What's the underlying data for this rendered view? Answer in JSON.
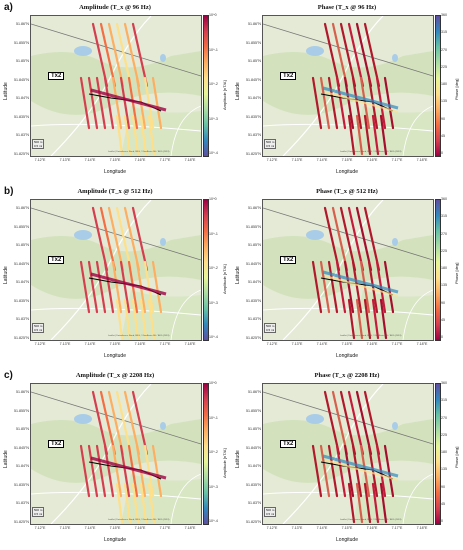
{
  "rows": [
    {
      "letter": "a)",
      "amp_title": "Amplitude (T_x @ 96 Hz)",
      "phase_title": "Phase (T_x @ 96 Hz)"
    },
    {
      "letter": "b)",
      "amp_title": "Amplitude (T_x @ 512 Hz)",
      "phase_title": "Phase (T_x @ 512 Hz)"
    },
    {
      "letter": "c)",
      "amp_title": "Amplitude (T_x @ 2208 Hz)",
      "phase_title": "Phase (T_x @ 2208 Hz)"
    }
  ],
  "axes": {
    "xlabel": "Longitude",
    "ylabel": "Latitude",
    "xticks": [
      "7.12°E",
      "7.13°E",
      "7.14°E",
      "7.15°E",
      "7.16°E",
      "7.17°E",
      "7.18°E"
    ],
    "yticks": [
      "51.86°N",
      "51.855°N",
      "51.85°N",
      "51.845°N",
      "51.84°N",
      "51.835°N",
      "51.83°N",
      "51.825°N"
    ]
  },
  "amp_colorbar": {
    "label": "Amplitude [nT/A]",
    "ticks": [
      "10^0",
      "10^-1",
      "10^-2",
      "10^-3",
      "10^-4"
    ]
  },
  "phase_colorbar": {
    "label": "Phase [deg]",
    "ticks": [
      "360",
      "315",
      "270",
      "225",
      "180",
      "135",
      "90",
      "45",
      "0"
    ]
  },
  "tx_label": "Tx2",
  "scale_labels": [
    "500 m",
    "0.5 mi"
  ],
  "attribution": "Leaflet | Datenlizenz: Bund, BKG, ©GeoBasis-DE / BKG (2019)"
}
